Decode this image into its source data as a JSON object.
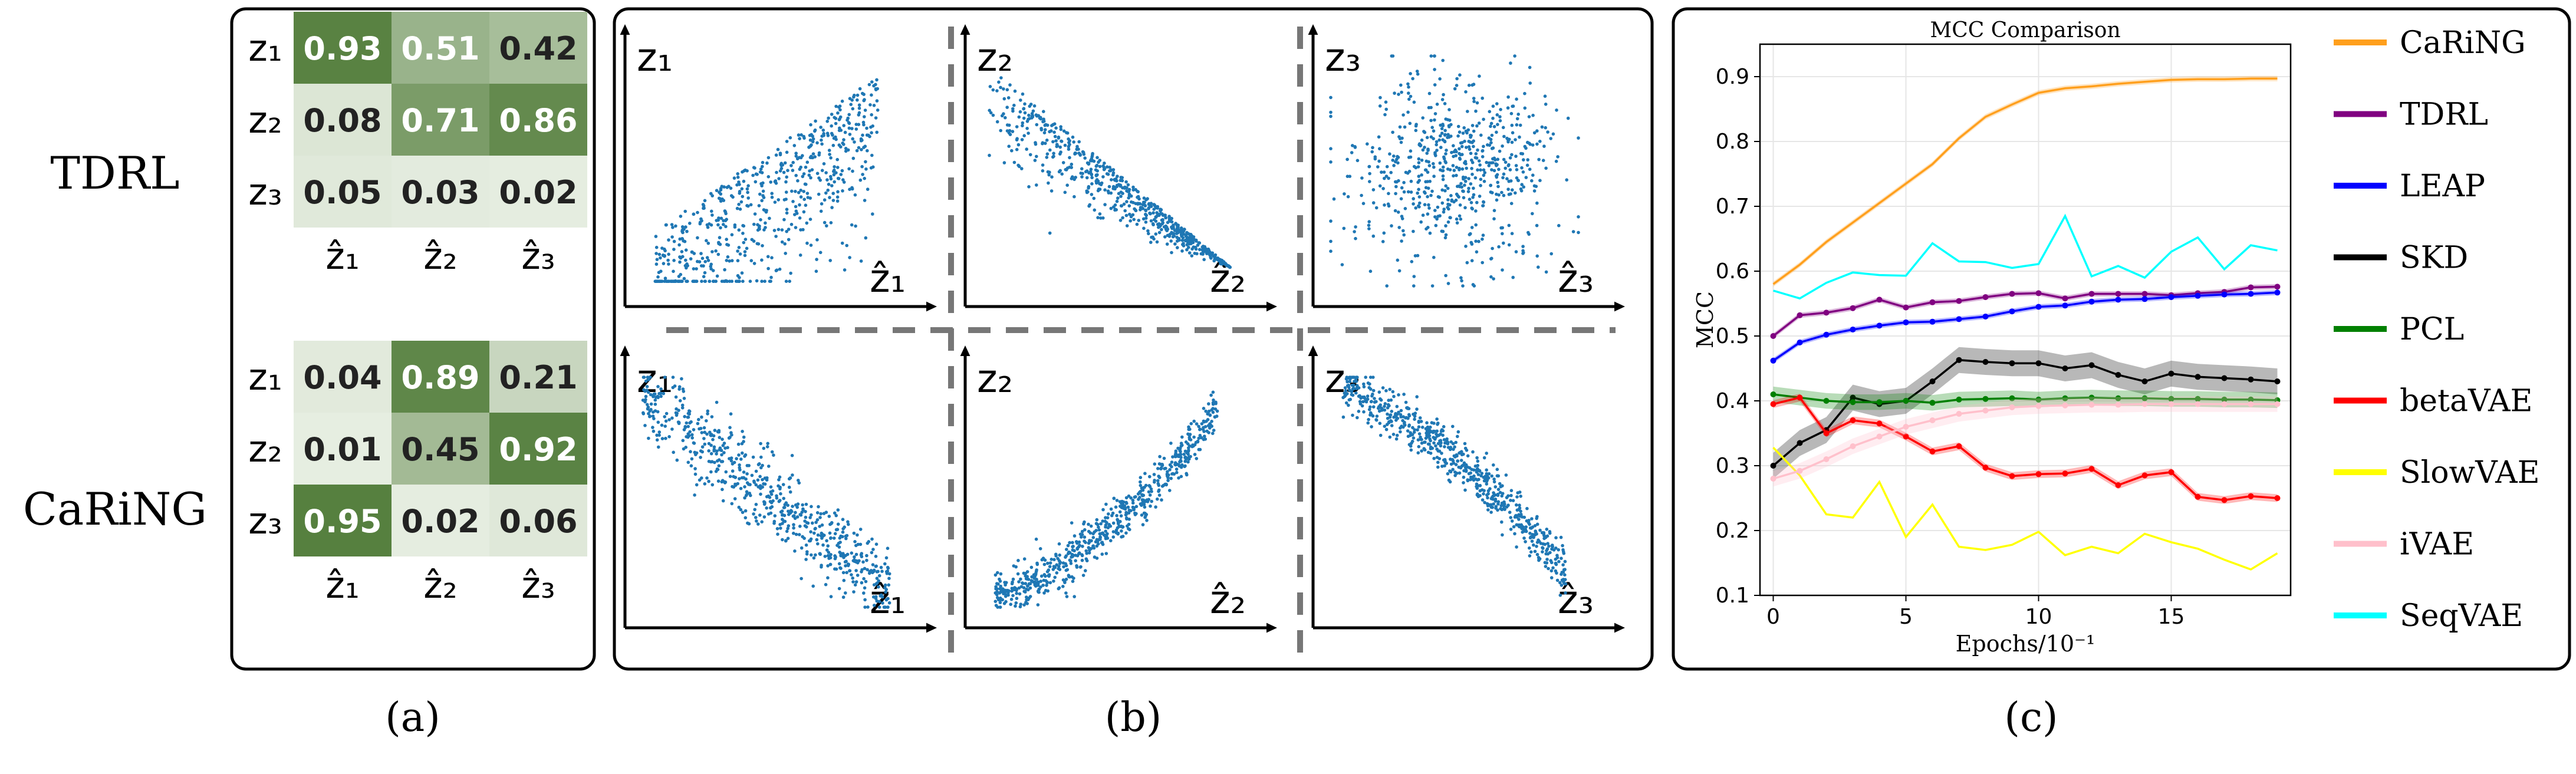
{
  "panel_a": {
    "caption": "(a)",
    "row_labels": [
      "z₁",
      "z₂",
      "z₃"
    ],
    "col_labels": [
      "ẑ₁",
      "ẑ₂",
      "ẑ₃"
    ],
    "tdrl": {
      "label": "TDRL",
      "matrix": [
        [
          0.93,
          0.51,
          0.42
        ],
        [
          0.08,
          0.71,
          0.86
        ],
        [
          0.05,
          0.03,
          0.02
        ]
      ]
    },
    "caring": {
      "label": "CaRiNG",
      "matrix": [
        [
          0.04,
          0.89,
          0.21
        ],
        [
          0.01,
          0.45,
          0.92
        ],
        [
          0.95,
          0.02,
          0.06
        ]
      ]
    },
    "color_low": "#e8efe3",
    "color_high": "#4e7a36"
  },
  "panel_b": {
    "caption": "(b)",
    "point_color": "#1f77b4",
    "y_labels": [
      "z₁",
      "z₂",
      "z₃"
    ],
    "x_labels": [
      "ẑ₁",
      "ẑ₂",
      "ẑ₃"
    ],
    "plots": [
      {
        "row": 0,
        "col": 0,
        "pattern": "fan-up"
      },
      {
        "row": 0,
        "col": 1,
        "pattern": "fan-down"
      },
      {
        "row": 0,
        "col": 2,
        "pattern": "cloud"
      },
      {
        "row": 1,
        "col": 0,
        "pattern": "neg-line"
      },
      {
        "row": 1,
        "col": 1,
        "pattern": "pos-curve"
      },
      {
        "row": 1,
        "col": 2,
        "pattern": "neg-curve"
      }
    ]
  },
  "panel_c": {
    "caption": "(c)",
    "chart_data": {
      "type": "line",
      "title": "MCC Comparison",
      "xlabel": "Epochs/10⁻¹",
      "ylabel": "MCC",
      "xlim": [
        -0.5,
        19.5
      ],
      "ylim": [
        0.1,
        0.95
      ],
      "xticks": [
        0,
        5,
        10,
        15
      ],
      "yticks": [
        0.1,
        0.2,
        0.3,
        0.4,
        0.5,
        0.6,
        0.7,
        0.8,
        0.9
      ],
      "x": [
        0,
        1,
        2,
        3,
        4,
        5,
        6,
        7,
        8,
        9,
        10,
        11,
        12,
        13,
        14,
        15,
        16,
        17,
        18,
        19
      ],
      "series": [
        {
          "name": "CaRiNG",
          "color": "#ff9f1c",
          "band": 0.004,
          "markers": false,
          "values": [
            0.58,
            0.61,
            0.645,
            0.675,
            0.705,
            0.735,
            0.765,
            0.805,
            0.838,
            0.857,
            0.875,
            0.882,
            0.885,
            0.889,
            0.892,
            0.895,
            0.896,
            0.896,
            0.897,
            0.897
          ]
        },
        {
          "name": "TDRL",
          "color": "#800080",
          "band": 0.004,
          "markers": true,
          "values": [
            0.5,
            0.532,
            0.536,
            0.543,
            0.556,
            0.544,
            0.552,
            0.554,
            0.56,
            0.565,
            0.566,
            0.558,
            0.565,
            0.565,
            0.565,
            0.563,
            0.566,
            0.568,
            0.575,
            0.576
          ]
        },
        {
          "name": "LEAP",
          "color": "#0000ff",
          "band": 0.004,
          "markers": true,
          "values": [
            0.462,
            0.49,
            0.502,
            0.51,
            0.516,
            0.521,
            0.522,
            0.526,
            0.53,
            0.538,
            0.545,
            0.547,
            0.553,
            0.556,
            0.557,
            0.56,
            0.562,
            0.564,
            0.565,
            0.567
          ]
        },
        {
          "name": "SKD",
          "color": "#000000",
          "band": 0.02,
          "markers": true,
          "values": [
            0.3,
            0.335,
            0.355,
            0.405,
            0.395,
            0.4,
            0.43,
            0.463,
            0.46,
            0.458,
            0.458,
            0.45,
            0.455,
            0.44,
            0.43,
            0.442,
            0.437,
            0.435,
            0.433,
            0.43
          ]
        },
        {
          "name": "PCL",
          "color": "#008000",
          "band": 0.012,
          "markers": true,
          "values": [
            0.41,
            0.405,
            0.4,
            0.398,
            0.398,
            0.4,
            0.397,
            0.402,
            0.403,
            0.404,
            0.402,
            0.404,
            0.405,
            0.404,
            0.404,
            0.403,
            0.403,
            0.402,
            0.402,
            0.401
          ]
        },
        {
          "name": "betaVAE",
          "color": "#ff0000",
          "band": 0.006,
          "markers": true,
          "values": [
            0.395,
            0.405,
            0.35,
            0.37,
            0.365,
            0.345,
            0.322,
            0.33,
            0.297,
            0.284,
            0.287,
            0.288,
            0.295,
            0.27,
            0.285,
            0.29,
            0.252,
            0.247,
            0.253,
            0.25
          ]
        },
        {
          "name": "SlowVAE",
          "color": "#ffff00",
          "band": 0.0,
          "markers": false,
          "values": [
            0.328,
            0.285,
            0.225,
            0.22,
            0.275,
            0.19,
            0.24,
            0.175,
            0.17,
            0.178,
            0.198,
            0.162,
            0.175,
            0.165,
            0.195,
            0.182,
            0.172,
            0.155,
            0.14,
            0.165
          ]
        },
        {
          "name": "iVAE",
          "color": "#ffc0cb",
          "band": 0.012,
          "markers": true,
          "values": [
            0.28,
            0.292,
            0.31,
            0.33,
            0.345,
            0.36,
            0.37,
            0.38,
            0.385,
            0.39,
            0.392,
            0.393,
            0.394,
            0.394,
            0.395,
            0.395,
            0.395,
            0.395,
            0.395,
            0.395
          ]
        },
        {
          "name": "SeqVAE",
          "color": "#00ffff",
          "band": 0.0,
          "markers": false,
          "values": [
            0.57,
            0.558,
            0.582,
            0.598,
            0.594,
            0.593,
            0.643,
            0.615,
            0.614,
            0.605,
            0.611,
            0.685,
            0.592,
            0.608,
            0.59,
            0.63,
            0.652,
            0.603,
            0.64,
            0.632
          ]
        }
      ]
    }
  }
}
